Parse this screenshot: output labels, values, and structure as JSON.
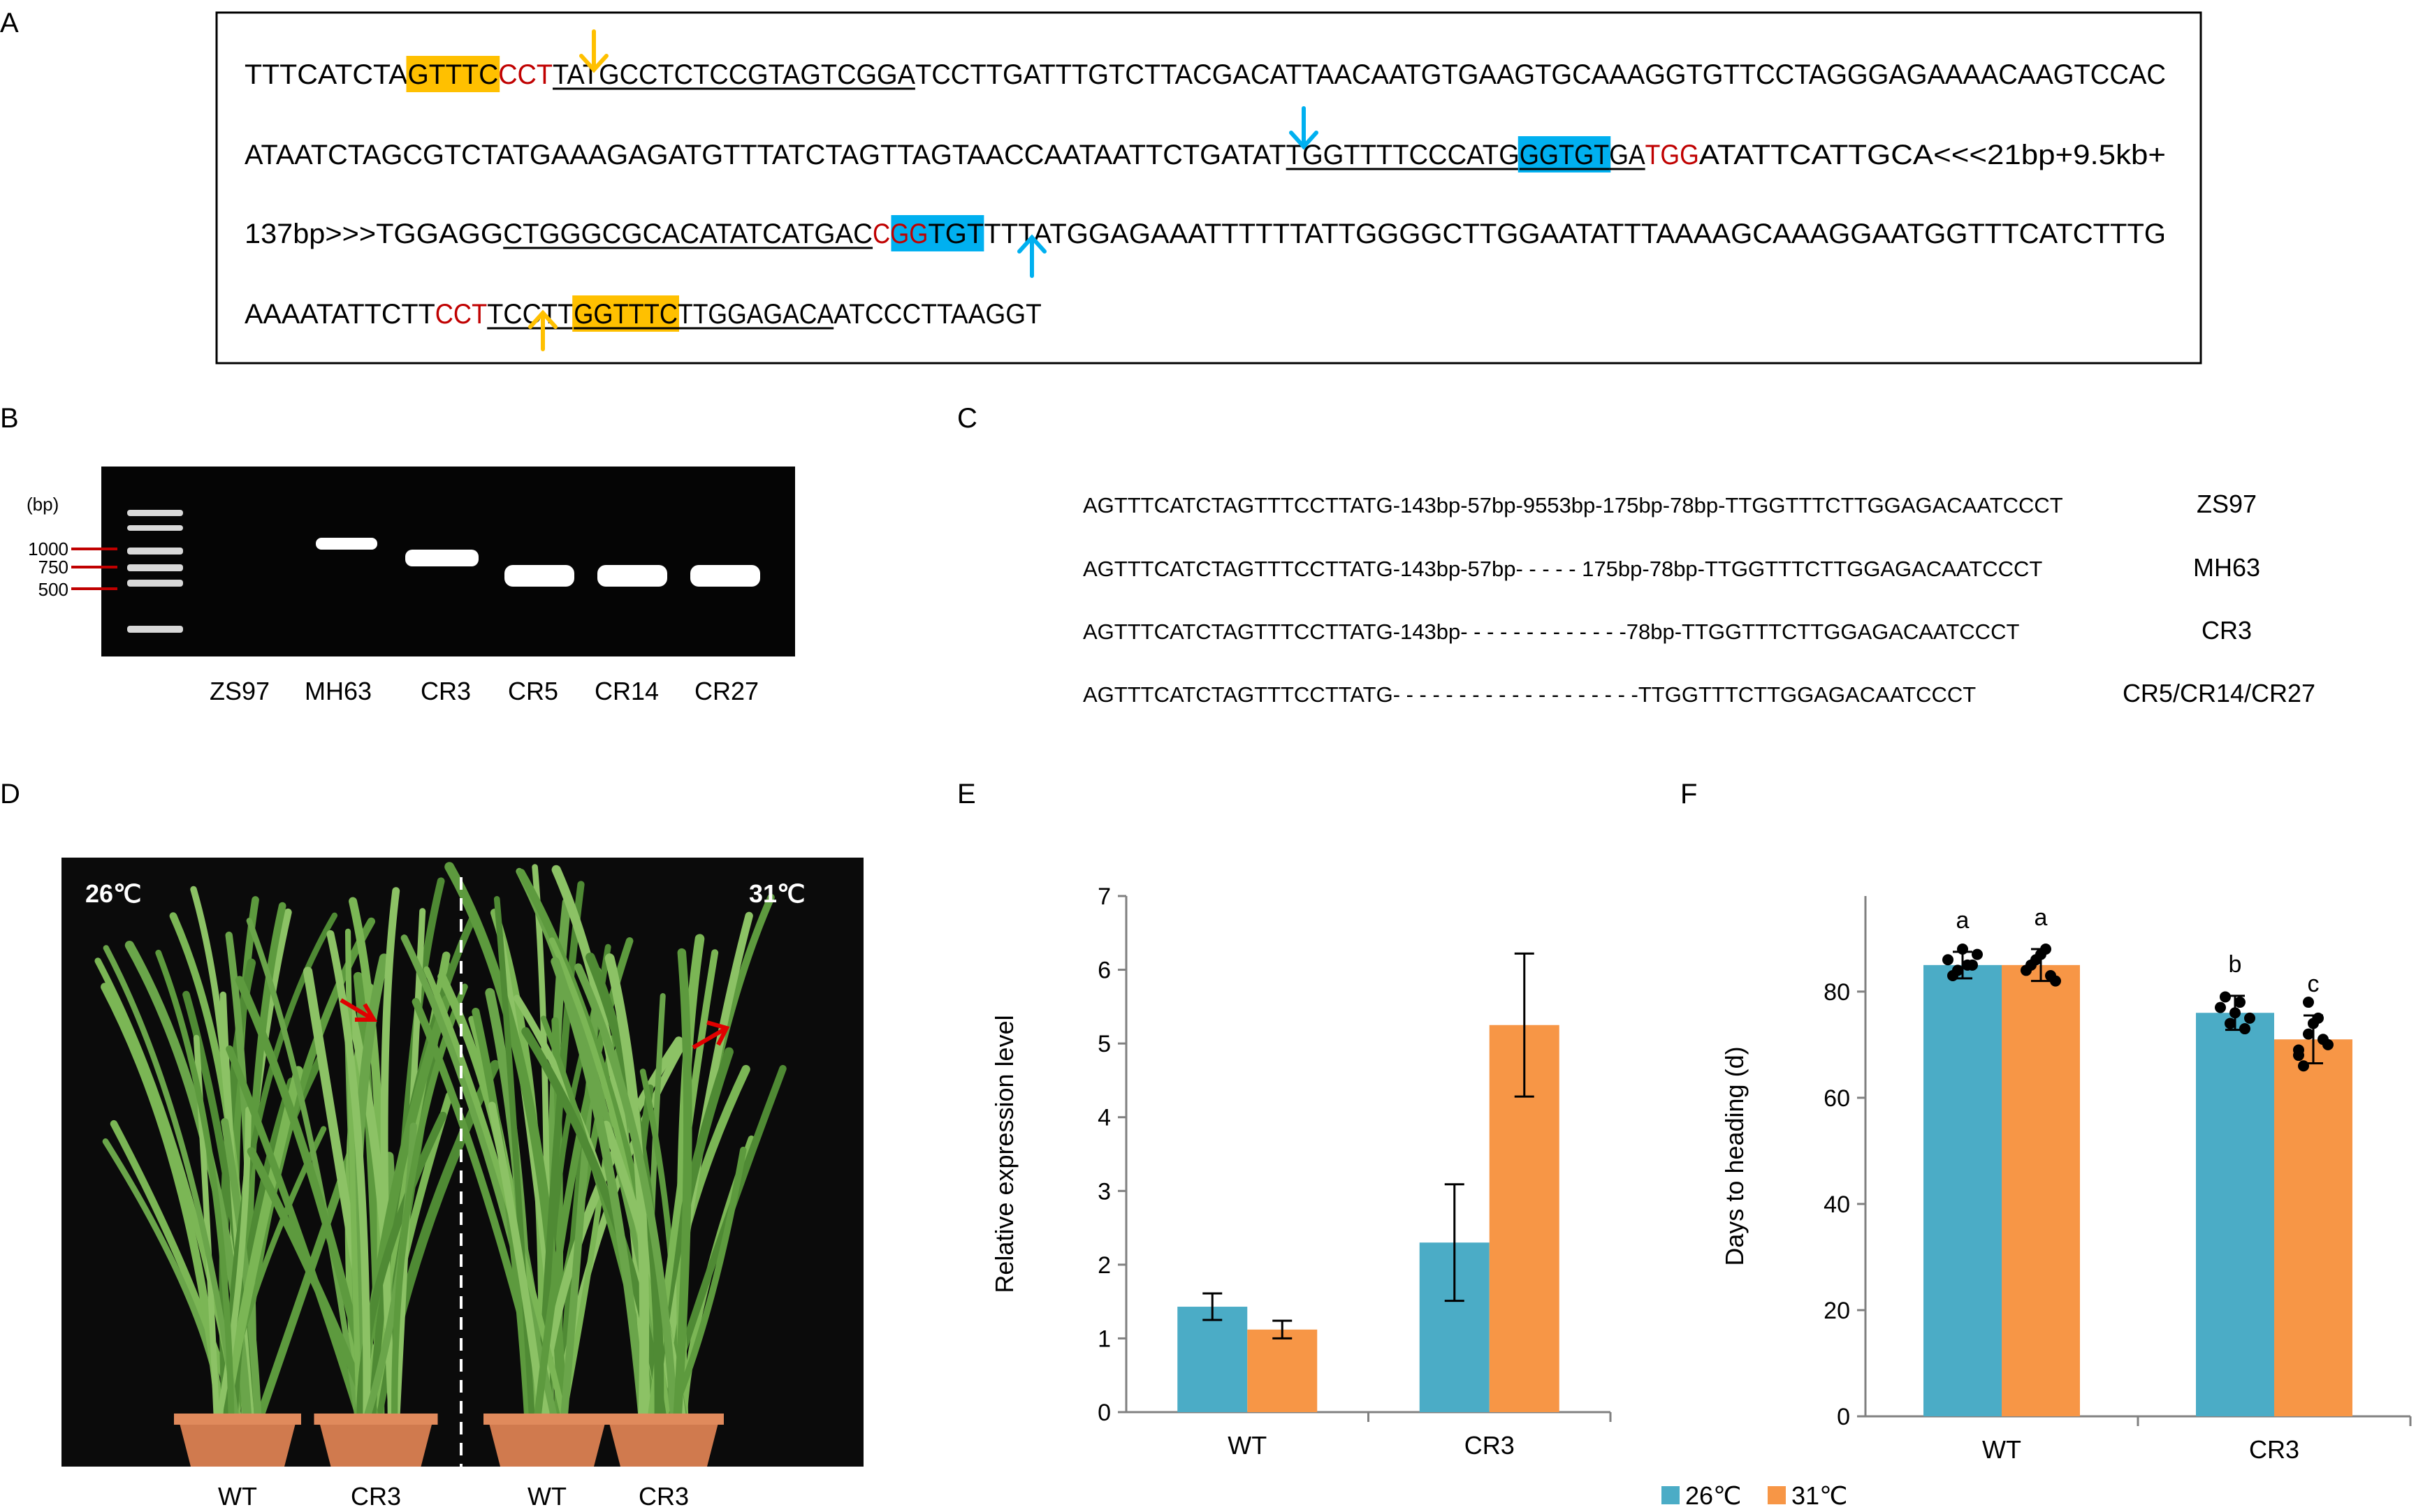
{
  "panel_labels": {
    "a": "A",
    "b": "B",
    "c": "C",
    "d": "D",
    "e": "E",
    "f": "F"
  },
  "panel_a": {
    "line1": [
      {
        "t": "TTTCATCTA",
        "c": "plain"
      },
      {
        "t": "GTTTC",
        "c": "hl_orange"
      },
      {
        "t": "CCT",
        "c": "red"
      },
      {
        "t": "TATGCCTCTCCGTAGTCGGA",
        "c": "underline"
      },
      {
        "t": "TCCTTGATTTGTCTTACGACATTAACAATGTGAAGTGCAAAGGTGTTCCTAGGGAGAAAACAAGTCCAC",
        "c": "plain"
      }
    ],
    "line2": [
      {
        "t": "ATAATCTAGCGTCTATGAAAGAGATGTTTATCTAGTTAGTAACCAATAATTCTGATAT",
        "c": "plain"
      },
      {
        "t": "TGGTTTTCCCATG",
        "c": "underline"
      },
      {
        "t": "GGTGT",
        "c": "hl_blue_ul"
      },
      {
        "t": "GA",
        "c": "underline"
      },
      {
        "t": "TGG",
        "c": "red"
      },
      {
        "t": "ATATTCATTGCA<<<21bp+9.5kb+",
        "c": "plain"
      }
    ],
    "line3": [
      {
        "t": "137bp>>>TGGAGG",
        "c": "plain"
      },
      {
        "t": "CTGGGCGCACATATCATGAC",
        "c": "underline"
      },
      {
        "t": "CGG",
        "c": "red_blue"
      },
      {
        "t": "TGTTTTATGGAGAAATTTTTTATTGGGGCTTGGAATATTTAAAAGCAAAGGAATGGTTTCATCTTTG",
        "c": "plain"
      }
    ],
    "line4": [
      {
        "t": "AAAATATTCTT",
        "c": "plain"
      },
      {
        "t": "CCT",
        "c": "red"
      },
      {
        "t": "TCCTT",
        "c": "underline"
      },
      {
        "t": "GGTTTC",
        "c": "hl_orange_ul"
      },
      {
        "t": "TTGGAGACA",
        "c": "underline"
      },
      {
        "t": "ATCCCTTAAGGT",
        "c": "plain"
      }
    ]
  },
  "panel_b": {
    "bp_label": "(bp)",
    "ladder": [
      "1000",
      "750",
      "500"
    ],
    "lanes": [
      "ZS97",
      "MH63",
      "CR3",
      "CR5",
      "CR14",
      "CR27"
    ]
  },
  "panel_c": {
    "rows": [
      {
        "seq": "AGTTTCATCTAGTTTCCTTATG-143bp-57bp-9553bp-175bp-78bp-TTGGTTTCTTGGAGACAATCCCT",
        "name": "ZS97"
      },
      {
        "seq": "AGTTTCATCTAGTTTCCTTATG-143bp-57bp- - - - - 175bp-78bp-TTGGTTTCTTGGAGACAATCCCT",
        "name": "MH63"
      },
      {
        "seq": "AGTTTCATCTAGTTTCCTTATG-143bp- - - - - - - - - - - - -78bp-TTGGTTTCTTGGAGACAATCCCT",
        "name": "CR3"
      },
      {
        "seq": "AGTTTCATCTAGTTTCCTTATG- - - - - - - - - - - - - - - - - - -TTGGTTTCTTGGAGACAATCCCT",
        "name": "CR5/CR14/CR27"
      }
    ]
  },
  "panel_d": {
    "temp_left": "26℃",
    "temp_right": "31℃",
    "labels": [
      "WT",
      "CR3",
      "WT",
      "CR3"
    ],
    "colors": {
      "bg": "#0b0b0b",
      "pot": "#d07a4e",
      "leaf": "#6aa54a"
    }
  },
  "legend": {
    "s1": "26℃",
    "s2": "31℃"
  },
  "colors": {
    "s1": "#4bacc6",
    "s2": "#f79646",
    "hl_orange": "#ffc000",
    "hl_blue": "#00b0f0",
    "red": "#c00000"
  },
  "chart_data": [
    {
      "type": "bar",
      "panel": "E",
      "categories": [
        "WT",
        "CR3"
      ],
      "series": [
        {
          "name": "26℃",
          "values": [
            1.43,
            2.3
          ],
          "errors": [
            0.18,
            0.79
          ]
        },
        {
          "name": "31℃",
          "values": [
            1.12,
            5.25
          ],
          "errors": [
            0.12,
            0.97
          ]
        }
      ],
      "ylabel": "Relative expression level",
      "ylim": [
        0,
        7
      ],
      "yticks": [
        0,
        1,
        2,
        3,
        4,
        5,
        6,
        7
      ],
      "grid": false
    },
    {
      "type": "bar",
      "panel": "F",
      "categories": [
        "WT",
        "CR3"
      ],
      "series": [
        {
          "name": "26℃",
          "values": [
            85,
            76
          ],
          "errors": [
            2.5,
            3.2
          ],
          "letters": [
            "a",
            "b"
          ],
          "points": [
            [
              86,
              84,
              85,
              87,
              83,
              88,
              85
            ],
            [
              77,
              74,
              78,
              75,
              79,
              76,
              73
            ]
          ]
        },
        {
          "name": "31℃",
          "values": [
            85,
            71
          ],
          "errors": [
            3,
            4.5
          ],
          "letters": [
            "a",
            "c"
          ],
          "points": [
            [
              84,
              86,
              88,
              82,
              85,
              87,
              83
            ],
            [
              68,
              72,
              75,
              70,
              66,
              74,
              71,
              69,
              78
            ]
          ]
        }
      ],
      "ylabel": "Days to heading (d)",
      "ylim": [
        0,
        98
      ],
      "yticks": [
        0,
        20,
        40,
        60,
        80
      ],
      "grid": false
    }
  ]
}
